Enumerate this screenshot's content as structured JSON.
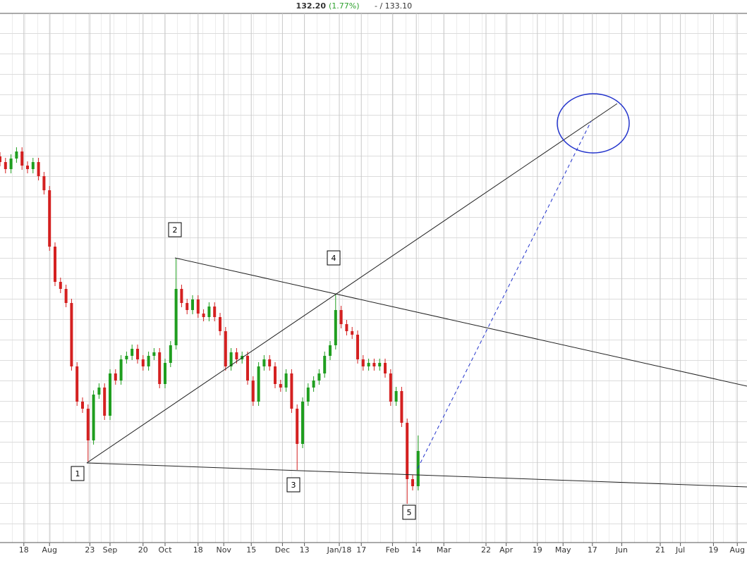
{
  "header": {
    "last": "132.20",
    "change": "(1.77%)",
    "rest": "- / 133.10"
  },
  "wave_labels": [
    "1",
    "2",
    "3",
    "4",
    "5"
  ],
  "chart_data": {
    "type": "candlestick",
    "x": [
      0,
      3,
      6,
      9,
      12,
      15,
      18,
      21,
      24,
      27,
      30,
      33,
      36,
      39,
      42,
      45,
      48,
      51,
      54,
      57,
      60,
      63,
      66,
      69,
      72,
      75,
      78,
      81,
      84,
      87,
      90,
      93,
      96,
      99,
      102,
      105,
      108,
      111,
      114,
      117,
      120,
      123,
      126,
      129,
      132,
      135,
      138,
      141,
      144,
      147,
      150,
      153,
      156,
      159,
      162,
      165,
      168,
      171,
      174,
      177,
      180,
      183,
      186,
      189,
      192,
      195,
      198,
      201,
      204,
      207,
      210,
      213,
      216,
      219,
      222,
      225,
      228
    ],
    "open": [
      174.0,
      173.2,
      172.2,
      173.7,
      174.7,
      172.7,
      172.2,
      173.2,
      171.2,
      169.2,
      161.2,
      156.2,
      155.2,
      153.2,
      144.2,
      139.2,
      138.2,
      133.7,
      140.2,
      141.2,
      137.2,
      143.2,
      142.2,
      145.2,
      145.7,
      146.7,
      145.2,
      144.2,
      145.7,
      146.2,
      141.7,
      144.7,
      147.2,
      155.2,
      153.2,
      152.2,
      153.7,
      151.7,
      151.2,
      152.7,
      151.2,
      149.2,
      144.2,
      146.2,
      145.2,
      145.7,
      142.2,
      139.2,
      144.2,
      145.2,
      144.2,
      141.7,
      141.2,
      143.2,
      138.2,
      133.2,
      139.2,
      141.2,
      142.2,
      143.2,
      145.7,
      147.2,
      152.2,
      150.2,
      149.2,
      148.7,
      145.2,
      144.2,
      144.7,
      144.2,
      144.7,
      143.2,
      139.2,
      140.7,
      136.2,
      128.2,
      127.2
    ],
    "high": [
      174.6,
      173.8,
      174.3,
      175.3,
      175.3,
      173.3,
      173.8,
      173.8,
      171.8,
      169.8,
      161.8,
      156.8,
      155.8,
      153.8,
      144.8,
      139.8,
      138.8,
      140.8,
      141.8,
      141.8,
      143.8,
      143.8,
      145.8,
      146.3,
      147.3,
      147.3,
      145.8,
      146.3,
      146.8,
      146.8,
      145.3,
      147.8,
      159.5,
      155.8,
      153.8,
      154.3,
      154.3,
      152.3,
      153.3,
      153.3,
      151.8,
      149.8,
      146.8,
      146.8,
      146.3,
      146.3,
      142.8,
      144.8,
      145.8,
      145.8,
      144.8,
      142.3,
      143.8,
      143.8,
      138.8,
      139.8,
      141.8,
      142.8,
      143.8,
      146.3,
      147.8,
      154.4,
      152.8,
      150.8,
      149.8,
      149.3,
      145.8,
      145.3,
      145.3,
      145.3,
      145.3,
      143.8,
      141.3,
      141.3,
      136.8,
      128.8,
      134.4
    ],
    "low": [
      172.6,
      171.6,
      171.6,
      173.1,
      172.1,
      171.6,
      171.6,
      170.6,
      168.6,
      160.6,
      155.6,
      154.6,
      152.6,
      143.6,
      138.6,
      137.6,
      130.7,
      133.1,
      139.6,
      136.6,
      136.6,
      141.6,
      141.6,
      144.6,
      145.1,
      144.6,
      143.6,
      143.6,
      145.1,
      141.1,
      141.1,
      144.1,
      146.6,
      152.6,
      151.6,
      151.6,
      151.1,
      150.6,
      150.6,
      150.6,
      148.6,
      143.6,
      143.6,
      144.6,
      144.6,
      141.6,
      138.6,
      138.6,
      143.6,
      143.6,
      141.1,
      140.6,
      140.6,
      137.6,
      129.5,
      132.6,
      138.6,
      140.6,
      141.6,
      142.6,
      145.1,
      146.6,
      149.6,
      148.6,
      148.1,
      144.6,
      143.6,
      143.6,
      143.6,
      143.6,
      142.6,
      138.6,
      138.6,
      135.6,
      124.7,
      126.6,
      126.6
    ],
    "close": [
      173.2,
      172.2,
      173.7,
      174.7,
      172.7,
      172.2,
      173.2,
      171.2,
      169.2,
      161.2,
      156.2,
      155.2,
      153.2,
      144.2,
      139.2,
      138.2,
      133.7,
      140.2,
      141.2,
      137.2,
      143.2,
      142.2,
      145.2,
      145.7,
      146.7,
      145.2,
      144.2,
      145.7,
      146.2,
      141.7,
      144.7,
      147.2,
      155.2,
      153.2,
      152.2,
      153.7,
      151.7,
      151.2,
      152.7,
      151.2,
      149.2,
      144.2,
      146.2,
      145.2,
      145.7,
      142.2,
      139.2,
      144.2,
      145.2,
      144.2,
      141.7,
      141.2,
      143.2,
      138.2,
      133.2,
      139.2,
      141.2,
      142.2,
      143.2,
      145.7,
      147.2,
      152.2,
      150.2,
      149.2,
      148.7,
      145.2,
      144.2,
      144.7,
      144.2,
      144.7,
      143.2,
      139.2,
      140.7,
      136.2,
      128.2,
      127.2,
      132.2
    ],
    "up_color": "#1f9e1f",
    "down_color": "#d42020",
    "xlim": [
      0,
      407.3
    ],
    "ylim": [
      119.2,
      194.2
    ],
    "xticks": [
      {
        "value": 13,
        "label": "18"
      },
      {
        "value": 27,
        "label": "Aug"
      },
      {
        "value": 49,
        "label": "23"
      },
      {
        "value": 60,
        "label": "Sep"
      },
      {
        "value": 78,
        "label": "20"
      },
      {
        "value": 90,
        "label": "Oct"
      },
      {
        "value": 108,
        "label": "18"
      },
      {
        "value": 122,
        "label": "Nov"
      },
      {
        "value": 137,
        "label": "15"
      },
      {
        "value": 154,
        "label": "Dec"
      },
      {
        "value": 166,
        "label": "13"
      },
      {
        "value": 185,
        "label": "Jan/18"
      },
      {
        "value": 197,
        "label": "17"
      },
      {
        "value": 214,
        "label": "Feb"
      },
      {
        "value": 227,
        "label": "14"
      },
      {
        "value": 242,
        "label": "Mar"
      },
      {
        "value": 265,
        "label": "22"
      },
      {
        "value": 276,
        "label": "Apr"
      },
      {
        "value": 293,
        "label": "19"
      },
      {
        "value": 307,
        "label": "May"
      },
      {
        "value": 323,
        "label": "17"
      },
      {
        "value": 339,
        "label": "Jun"
      },
      {
        "value": 360,
        "label": "21"
      },
      {
        "value": 371,
        "label": "Jul"
      },
      {
        "value": 389,
        "label": "19"
      },
      {
        "value": 402,
        "label": "Aug"
      }
    ],
    "grid": true
  }
}
